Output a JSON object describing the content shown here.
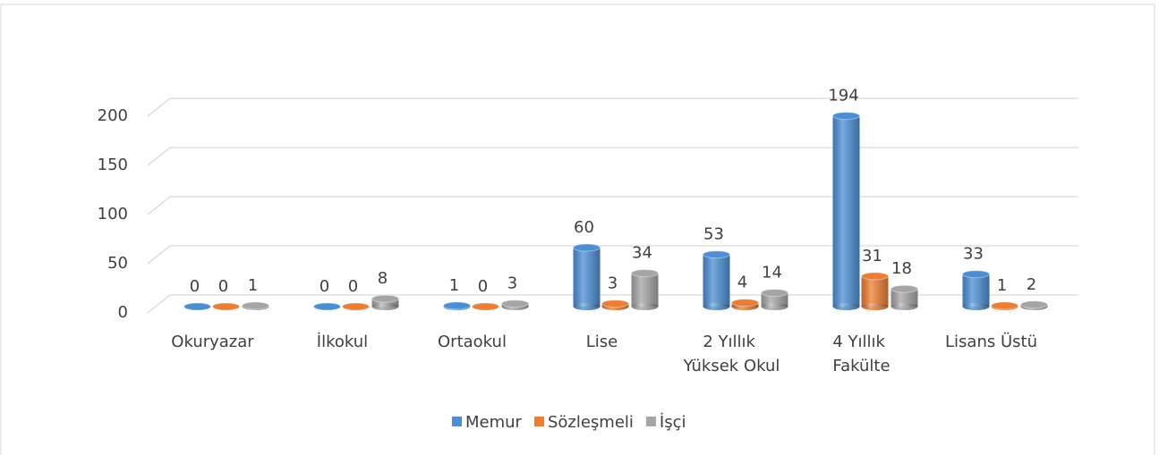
{
  "chart_data": {
    "type": "bar3d",
    "categories": [
      "Okuryazar",
      "İlkokul",
      "Ortaokul",
      "Lise",
      "2 Yıllık Yüksek Okul",
      "4 Yıllık Fakülte",
      "Lisans Üstü"
    ],
    "series": [
      {
        "name": "Memur",
        "color": "#4a8fd6",
        "values": [
          0,
          0,
          1,
          60,
          53,
          194,
          33
        ]
      },
      {
        "name": "Sözleşmeli",
        "color": "#ed7d31",
        "values": [
          0,
          0,
          0,
          3,
          4,
          31,
          1
        ]
      },
      {
        "name": "İşçi",
        "color": "#a5a5a5",
        "values": [
          1,
          8,
          3,
          34,
          14,
          18,
          2
        ]
      }
    ],
    "ylim": [
      0,
      200
    ],
    "yticks": [
      0,
      50,
      100,
      150,
      200
    ],
    "grid": true,
    "legend": "bottom"
  }
}
